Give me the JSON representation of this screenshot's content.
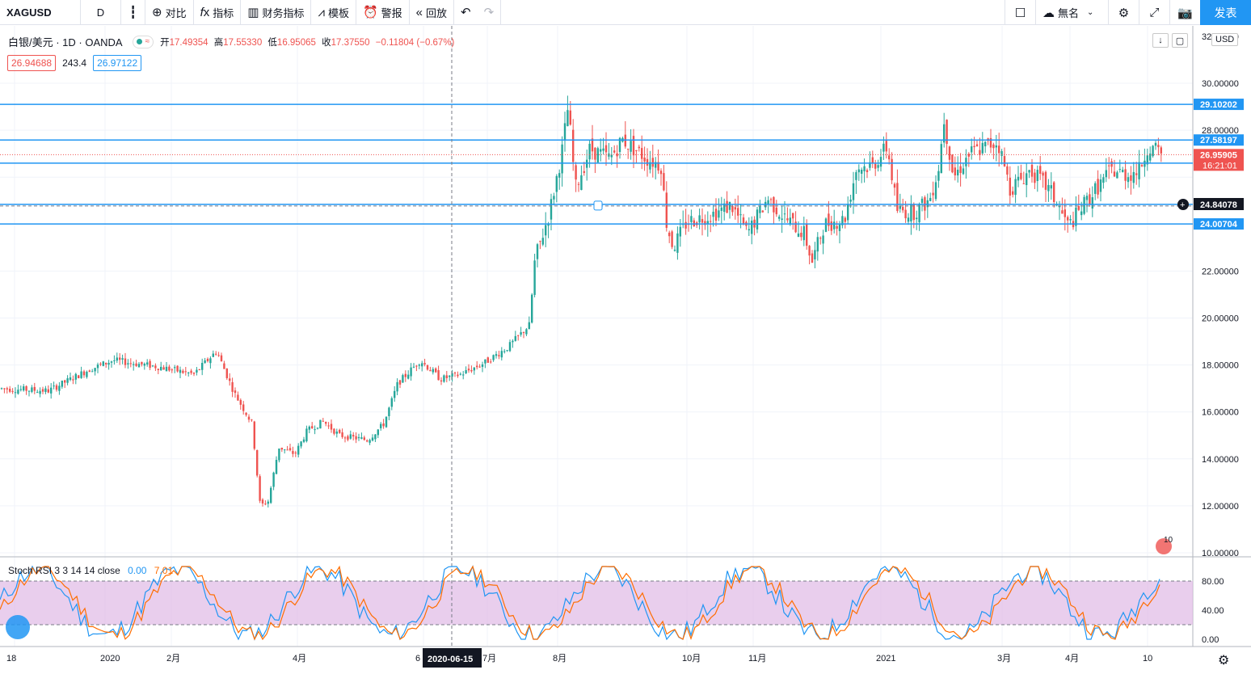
{
  "toolbar": {
    "symbol": "XAGUSD",
    "interval": "D",
    "candle_icon": "candles-icon",
    "compare": "对比",
    "indicators": "指标",
    "financials": "财务指标",
    "templates": "模板",
    "alerts": "警报",
    "replay": "回放",
    "layout_name": "無名",
    "publish": "发表"
  },
  "legend": {
    "title": "白银/美元 · 1D · OANDA",
    "open_label": "开",
    "open": "17.49354",
    "high_label": "高",
    "high": "17.55330",
    "low_label": "低",
    "low": "16.95065",
    "close_label": "收",
    "close": "17.37550",
    "change": "−0.11804 (−0.67%)",
    "bid": "26.94688",
    "spread": "243.4",
    "ask": "26.97122"
  },
  "currency": "USD",
  "stoch": {
    "label": "Stoch RSI 3 3 14 14 close",
    "k": "0.00",
    "d": "7.01"
  },
  "price_axis": [
    "32.00000",
    "30.00000",
    "28.00000",
    "22.00000",
    "20.00000",
    "18.00000",
    "16.00000",
    "14.00000",
    "12.00000",
    "10.00000"
  ],
  "stoch_axis": [
    "80.00",
    "40.00",
    "0.00"
  ],
  "stoch_axis_mid": "40.00",
  "hlines": [
    {
      "value": "29.10202",
      "price": 29.10202
    },
    {
      "value": "27.58197",
      "price": 27.58197
    },
    {
      "value": "26.59676",
      "price": 26.59676
    },
    {
      "value": "24.84078",
      "price": 24.84078
    },
    {
      "value": "24.00704",
      "price": 24.00704
    }
  ],
  "last_price": {
    "value": "26.95905",
    "countdown": "16:21:01",
    "price": 26.95905
  },
  "time_axis": [
    "18",
    "2020",
    "2月",
    "4月",
    "6",
    "7月",
    "8月",
    "10月",
    "11月",
    "2021",
    "3月",
    "4月",
    "10"
  ],
  "crosshair_date": "2020-06-15",
  "badge_count": "10",
  "colors": {
    "up": "#26a69a",
    "down": "#ef5350",
    "line": "#2196f3",
    "stoch_k": "#2196f3",
    "stoch_d": "#ff6d00",
    "band": "#e1bee7"
  }
}
